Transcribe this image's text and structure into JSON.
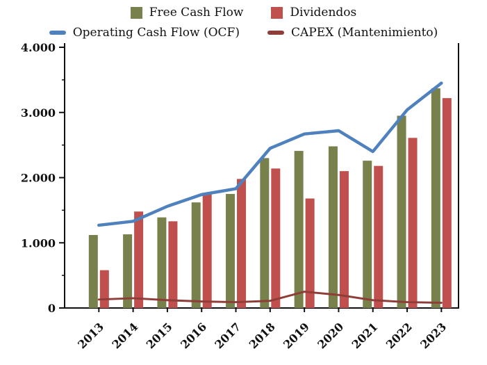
{
  "legend": {
    "items": [
      {
        "label": "Free Cash Flow",
        "color": "#78804b",
        "marker": "box"
      },
      {
        "label": "Dividendos",
        "color": "#c0504d",
        "marker": "box"
      },
      {
        "label": "Operating Cash Flow (OCF)",
        "color": "#4e81bd",
        "marker": "line"
      },
      {
        "label": "CAPEX (Mantenimiento)",
        "color": "#8f3d38",
        "marker": "line"
      }
    ]
  },
  "axes": {
    "y_ticks": [
      0,
      1000,
      2000,
      3000,
      4000
    ],
    "y_tick_labels": [
      "0",
      "1.000",
      "2.000",
      "3.000",
      "4.000"
    ],
    "y_minor_ticks": [
      500,
      1500,
      2500,
      3500
    ],
    "axis_color": "#111111"
  },
  "chart_data": {
    "type": "combo",
    "title": "",
    "xlabel": "",
    "ylabel": "",
    "grid": false,
    "legend_position": "top",
    "ylim": [
      0,
      4000
    ],
    "categories": [
      "2013",
      "2014",
      "2015",
      "2016",
      "2017",
      "2018",
      "2019",
      "2020",
      "2021",
      "2022",
      "2023"
    ],
    "series": [
      {
        "name": "Free Cash Flow",
        "type": "bar",
        "color": "#78804b",
        "values": [
          1120,
          1130,
          1390,
          1620,
          1750,
          2300,
          2410,
          2480,
          2260,
          2950,
          3370
        ]
      },
      {
        "name": "Dividendos",
        "type": "bar",
        "color": "#c0504d",
        "values": [
          580,
          1480,
          1330,
          1750,
          1980,
          2140,
          1680,
          2100,
          2180,
          2610,
          3220
        ]
      },
      {
        "name": "Operating Cash Flow (OCF)",
        "type": "line",
        "color": "#4e81bd",
        "values": [
          1270,
          1330,
          1560,
          1740,
          1830,
          2450,
          2670,
          2720,
          2400,
          3040,
          3450
        ]
      },
      {
        "name": "CAPEX (Mantenimiento)",
        "type": "line",
        "color": "#8f3d38",
        "values": [
          130,
          150,
          120,
          100,
          90,
          110,
          250,
          200,
          120,
          90,
          80
        ]
      }
    ]
  }
}
